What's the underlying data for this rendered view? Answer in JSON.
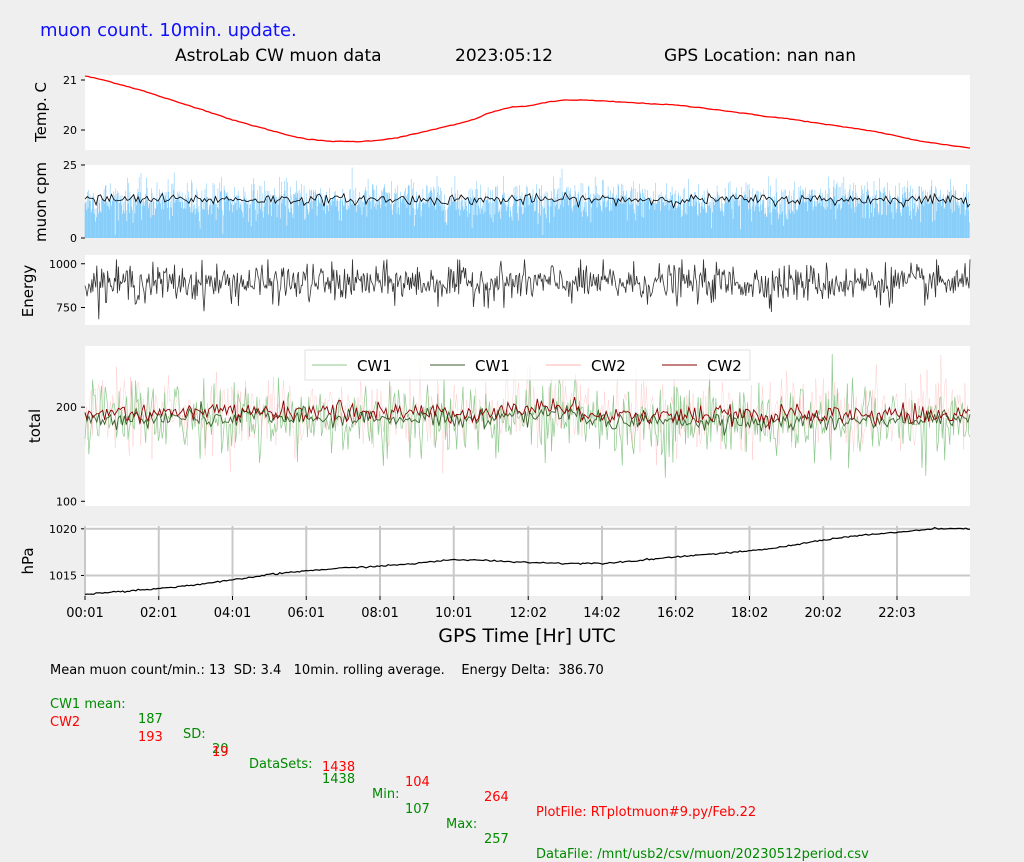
{
  "header": {
    "status": "muon count.  10min. update.",
    "source": "AstroLab CW muon data",
    "date": "2023:05:12",
    "gps": "GPS Location: nan   nan"
  },
  "colors": {
    "status": "#1010ff",
    "temperature": "#ff0000",
    "cpm_bars": "#87cefa",
    "cpm_avg": "#000000",
    "energy": "#333333",
    "cw1_raw": "#8fc98f",
    "cw1_avg": "#3a5f2a",
    "cw2_raw": "#ffb0b0",
    "cw2_avg": "#8b0000",
    "pressure": "#000000",
    "footer_cw1": "#008a00",
    "footer_cw2": "#ff0000"
  },
  "x_axis": {
    "label": "GPS Time  [Hr] UTC",
    "ticks": [
      "00:01",
      "02:01",
      "04:01",
      "06:01",
      "08:01",
      "10:01",
      "12:02",
      "14:02",
      "16:02",
      "18:02",
      "20:02",
      "22:03"
    ]
  },
  "legend": {
    "items": [
      {
        "label": "CW1",
        "kind": "raw"
      },
      {
        "label": "CW1",
        "kind": "avg"
      },
      {
        "label": "CW2",
        "kind": "raw"
      },
      {
        "label": "CW2",
        "kind": "avg"
      }
    ]
  },
  "chart_data": [
    {
      "type": "line",
      "ylabel": "Temp. C",
      "yticks": [
        "21",
        "20"
      ],
      "ylim": [
        19.6,
        21.1
      ],
      "x_hours": [
        0,
        0.5,
        1,
        1.5,
        2,
        2.5,
        3,
        3.5,
        4,
        4.5,
        5,
        5.5,
        6,
        6.5,
        7,
        7.5,
        8,
        8.5,
        9,
        9.5,
        10,
        10.5,
        11,
        11.5,
        12,
        12.5,
        13,
        13.5,
        14,
        14.5,
        15,
        15.5,
        16,
        16.5,
        17,
        17.5,
        18,
        18.5,
        19,
        19.5,
        20,
        20.5,
        21,
        21.5,
        22,
        22.5,
        23,
        23.5,
        24
      ],
      "values": [
        21.08,
        21.0,
        20.9,
        20.8,
        20.68,
        20.56,
        20.45,
        20.33,
        20.2,
        20.1,
        20.0,
        19.9,
        19.82,
        19.78,
        19.77,
        19.77,
        19.8,
        19.85,
        19.93,
        20.02,
        20.1,
        20.2,
        20.35,
        20.45,
        20.48,
        20.55,
        20.6,
        20.6,
        20.58,
        20.56,
        20.54,
        20.52,
        20.5,
        20.46,
        20.42,
        20.37,
        20.32,
        20.27,
        20.23,
        20.18,
        20.12,
        20.07,
        20.02,
        19.96,
        19.88,
        19.8,
        19.74,
        19.69,
        19.64
      ],
      "grid": false
    },
    {
      "type": "bar",
      "ylabel": "muon cpm",
      "yticks": [
        "25",
        "0"
      ],
      "ylim": [
        0,
        25
      ],
      "mean_cpm": 13,
      "sd": 3.4,
      "series": [
        {
          "kind": "bars",
          "description_values_mean": 13
        },
        {
          "kind": "rolling",
          "value_level": 13
        }
      ]
    },
    {
      "type": "line",
      "ylabel": "Energy",
      "yticks": [
        "1000",
        "750"
      ],
      "ylim": [
        650,
        1050
      ],
      "mean": 890,
      "grid": false
    },
    {
      "type": "line",
      "ylabel": "total",
      "yticks": [
        "200",
        "100"
      ],
      "ylim": [
        95,
        265
      ],
      "series": [
        {
          "name": "CW1",
          "mean": 187,
          "sd": 20,
          "min": 107,
          "max": 257
        },
        {
          "name": "CW2",
          "mean": 193,
          "sd": 19,
          "min": 104,
          "max": 264
        }
      ],
      "legend_position": "top"
    },
    {
      "type": "line",
      "ylabel": "hPa",
      "yticks": [
        "1020",
        "1015"
      ],
      "ylim": [
        1012.8,
        1020.3
      ],
      "x_hours": [
        0,
        1,
        2,
        3,
        4,
        5,
        6,
        7,
        8,
        9,
        10,
        11,
        12,
        13,
        14,
        15,
        16,
        17,
        18,
        19,
        20,
        21,
        22,
        23,
        24
      ],
      "values": [
        1013.0,
        1013.3,
        1013.6,
        1014.0,
        1014.5,
        1015.1,
        1015.5,
        1015.8,
        1016.0,
        1016.3,
        1016.7,
        1016.6,
        1016.4,
        1016.3,
        1016.3,
        1016.6,
        1017.0,
        1017.3,
        1017.6,
        1018.1,
        1018.8,
        1019.3,
        1019.6,
        1020.0,
        1020.0
      ],
      "grid": true
    }
  ],
  "footer": {
    "line1": "Mean muon count/min.: 13  SD: 3.4   10min. rolling average.    Energy Delta:  386.70",
    "cw1": {
      "label": "CW1 mean:",
      "mean": "187",
      "sd_label": "SD:",
      "sd": "20",
      "ds_label": "DataSets:",
      "datasets": "1438",
      "min_label": "Min:",
      "min": "107",
      "max_label": "Max:",
      "max": "257",
      "file": "DataFile: /mnt/usb2/csv/muon/20230512period.csv"
    },
    "cw2": {
      "label": "CW2",
      "mean": "193",
      "sd": "19",
      "datasets": "1438",
      "min": "104",
      "max": "264",
      "file": "PlotFile: RTplotmuon#9.py/Feb.22"
    }
  }
}
